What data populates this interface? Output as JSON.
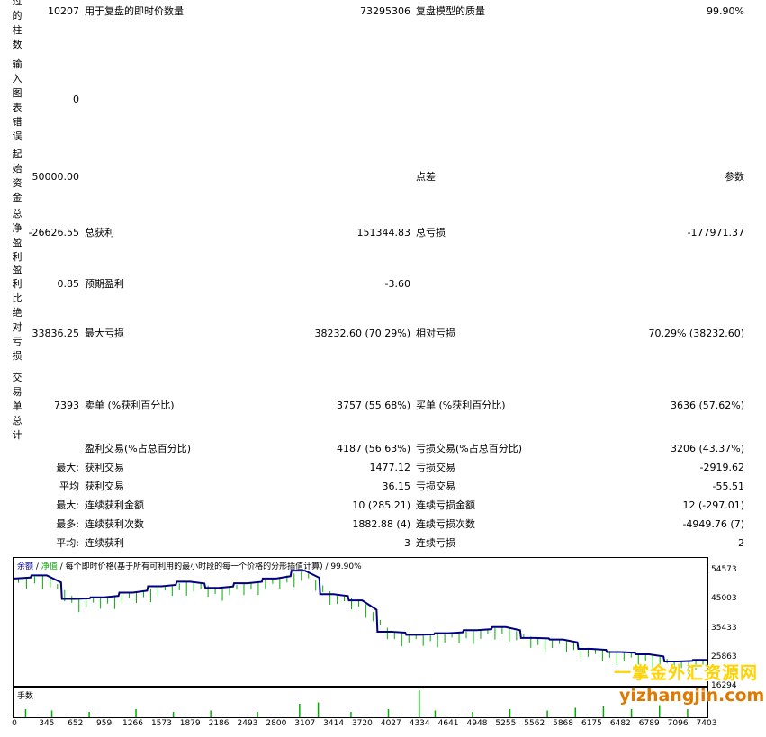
{
  "report": {
    "bars": {
      "value": "10207"
    },
    "ticks": {
      "label": "用于复盘的即时价数量",
      "value": "73295306"
    },
    "quality": {
      "label": "复盘模型的质量",
      "value": "99.90%"
    },
    "errors": {
      "value": "0"
    },
    "deposit": {
      "value": "50000.00"
    },
    "spread": {
      "label": "点差",
      "value": "参数"
    },
    "net_profit": {
      "value": "-26626.55"
    },
    "gross_profit": {
      "label": "总获利",
      "value": "151344.83"
    },
    "gross_loss": {
      "label": "总亏损",
      "value": "-177971.37"
    },
    "profit_factor": {
      "value": "0.85"
    },
    "expected_payoff": {
      "label": "预期盈利",
      "value": "-3.60"
    },
    "abs_drawdown": {
      "value": "33836.25"
    },
    "max_drawdown": {
      "label": "最大亏损",
      "value": "38232.60 (70.29%)"
    },
    "rel_drawdown": {
      "label": "相对亏损",
      "value": "70.29% (38232.60)"
    },
    "total_trades": {
      "value": "7393"
    },
    "short_positions": {
      "label": "卖单 (%获利百分比)",
      "value": "3757 (55.68%)"
    },
    "long_positions": {
      "label": "买单 (%获利百分比)",
      "value": "3636 (57.62%)"
    },
    "profit_trades": {
      "label": "盈利交易(%占总百分比)",
      "value": "4187 (56.63%)"
    },
    "loss_trades": {
      "label": "亏损交易(%占总百分比)",
      "value": "3206 (43.37%)"
    },
    "largest_prefix": "最大:",
    "largest_profit": {
      "label": "获利交易",
      "value": "1477.12"
    },
    "largest_loss": {
      "label": "亏损交易",
      "value": "-2919.62"
    },
    "average_prefix": "平均",
    "average_profit": {
      "label": "获利交易",
      "value": "36.15"
    },
    "average_loss": {
      "label": "亏损交易",
      "value": "-55.51"
    },
    "max_prefix": "最大:",
    "max_consec_wins": {
      "label": "连续获利金额",
      "value": "10 (285.21)"
    },
    "max_consec_losses": {
      "label": "连续亏损金额",
      "value": "12 (-297.01)"
    },
    "maximal_prefix": "最多:",
    "maximal_consec_profit": {
      "label": "连续获利次数",
      "value": "1882.88 (4)"
    },
    "maximal_consec_loss": {
      "label": "连续亏损次数",
      "value": "-4949.76 (7)"
    },
    "avg_prefix": "平均:",
    "avg_consec_wins": {
      "label": "连续获利",
      "value": "3"
    },
    "avg_consec_losses": {
      "label": "连续亏损",
      "value": "2"
    }
  },
  "side_labels": {
    "bars": [
      "过",
      "的",
      "柱",
      "数"
    ],
    "errors": [
      "输",
      "入",
      "图",
      "表",
      "错",
      "误"
    ],
    "deposit": [
      "起",
      "始",
      "资",
      "金"
    ],
    "net_profit": [
      "总",
      "净",
      "盈",
      "利"
    ],
    "profit_factor": [
      "盈",
      "利",
      "比"
    ],
    "abs_drawdown": [
      "绝",
      "对",
      "亏",
      "损"
    ],
    "total_trades": [
      "交",
      "易",
      "单",
      "总",
      "计"
    ]
  },
  "chart": {
    "header_balance": "余额",
    "header_sep1": " / ",
    "header_equity": "净值",
    "header_sep2": " / ",
    "header_text": "每个即时价格(基于所有可利用的最小时段的每一个价格的分形插值计算)",
    "header_sep3": " / ",
    "header_quality": "99.90%",
    "volume_title": "手数",
    "balance_color": "#000080",
    "equity_color": "#00b000"
  },
  "chart_data": {
    "type": "line",
    "x": [
      0,
      345,
      652,
      959,
      1266,
      1573,
      1879,
      2186,
      2493,
      2800,
      3107,
      3414,
      3720,
      4027,
      4334,
      4641,
      4948,
      5255,
      5562,
      5868,
      6175,
      6482,
      6789,
      7096,
      7403
    ],
    "series": [
      {
        "values": [
          50000,
          51000,
          43500,
          44000,
          45500,
          47500,
          49000,
          47000,
          48500,
          50000,
          52500,
          45000,
          43000,
          33000,
          32000,
          32500,
          33500,
          34500,
          31000,
          30500,
          27500,
          26500,
          25800,
          23500,
          24000
        ]
      }
    ],
    "x_ticks": [
      "0",
      "345",
      "652",
      "959",
      "1266",
      "1573",
      "1879",
      "2186",
      "2493",
      "2800",
      "3107",
      "3414",
      "3720",
      "4027",
      "4334",
      "4641",
      "4948",
      "5255",
      "5562",
      "5868",
      "6175",
      "6482",
      "6789",
      "7096",
      "7403"
    ],
    "y_ticks": [
      "54573",
      "45003",
      "35433",
      "25863",
      "16294"
    ],
    "ylim": [
      16294,
      56000
    ],
    "volume_spikes": [
      {
        "x": 120,
        "v": 0.3
      },
      {
        "x": 400,
        "v": 0.25
      },
      {
        "x": 800,
        "v": 0.2
      },
      {
        "x": 1300,
        "v": 0.3
      },
      {
        "x": 1700,
        "v": 0.2
      },
      {
        "x": 2100,
        "v": 0.25
      },
      {
        "x": 2600,
        "v": 0.2
      },
      {
        "x": 3050,
        "v": 0.5
      },
      {
        "x": 3250,
        "v": 0.55
      },
      {
        "x": 3600,
        "v": 0.2
      },
      {
        "x": 4000,
        "v": 0.3
      },
      {
        "x": 4330,
        "v": 1.0
      },
      {
        "x": 4500,
        "v": 0.25
      },
      {
        "x": 4900,
        "v": 0.2
      },
      {
        "x": 5300,
        "v": 0.3
      },
      {
        "x": 5700,
        "v": 0.25
      },
      {
        "x": 6000,
        "v": 0.35
      },
      {
        "x": 6300,
        "v": 0.4
      },
      {
        "x": 6600,
        "v": 0.3
      },
      {
        "x": 6900,
        "v": 0.45
      },
      {
        "x": 7200,
        "v": 0.3
      }
    ]
  },
  "watermark": {
    "line1": "一掌金外汇资源网",
    "line2": "yizhangjin.com"
  }
}
